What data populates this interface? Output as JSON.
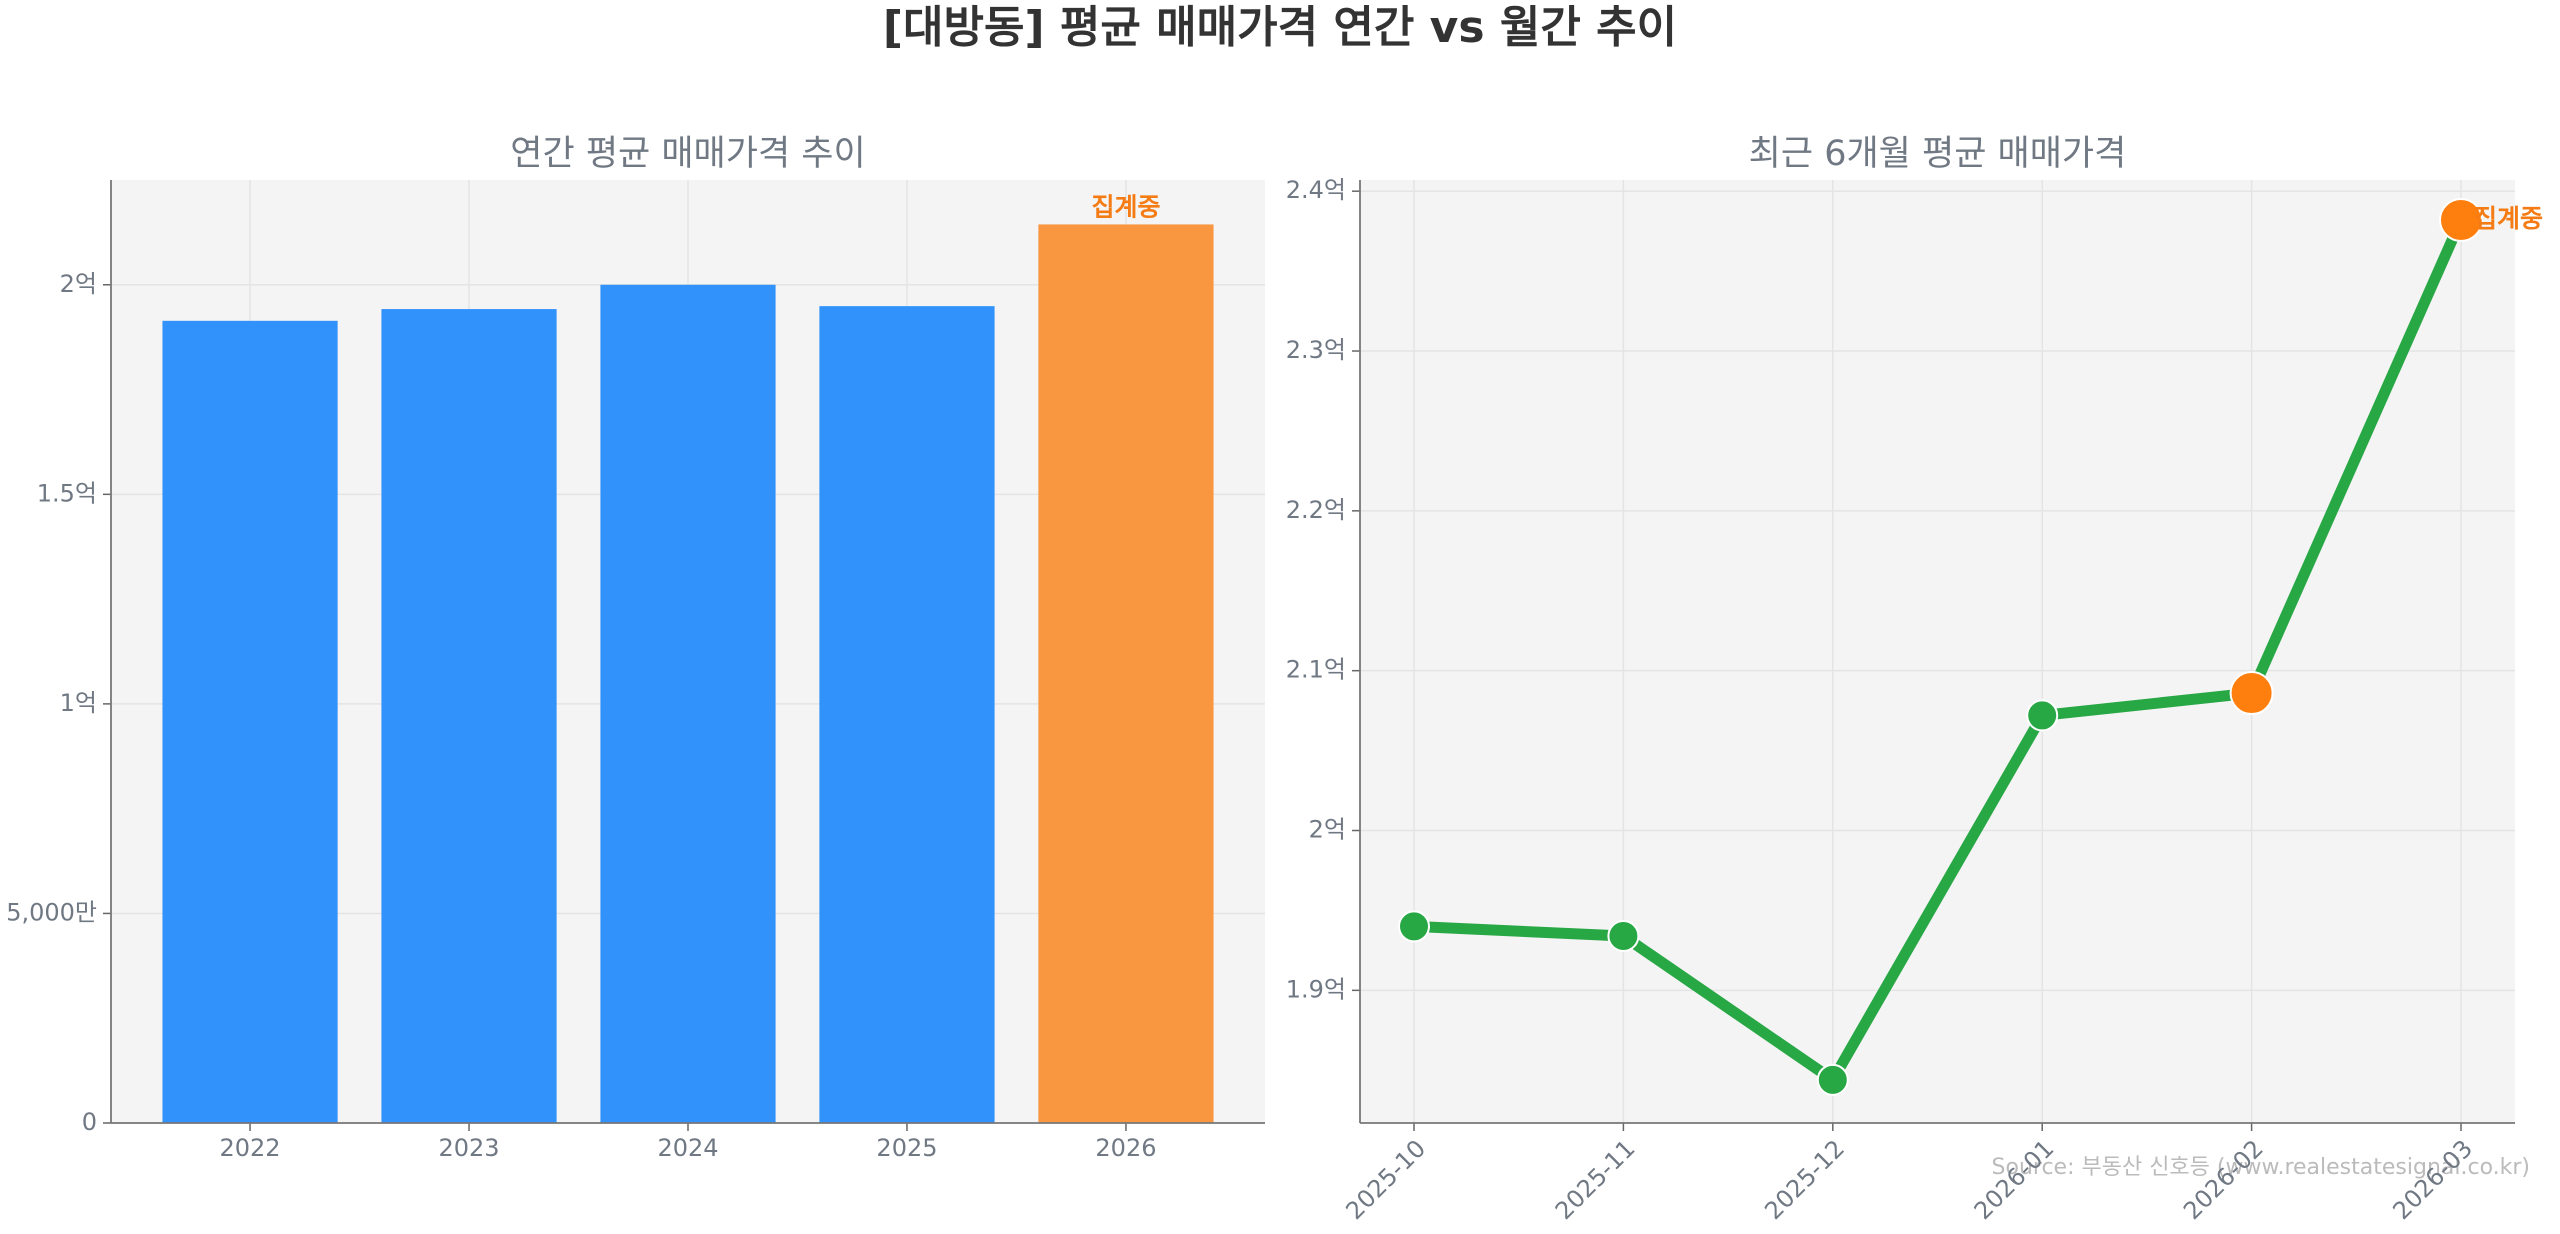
{
  "title": "[대방동] 평균 매매가격 연간 vs 월간 추이",
  "source": "Source: 부동산 신호등 (www.realestatesignal.co.kr)",
  "chart_data": [
    {
      "type": "bar",
      "title": "연간 평균 매매가격 추이",
      "categories": [
        "2022",
        "2023",
        "2024",
        "2025",
        "2026"
      ],
      "values": [
        1.914,
        1.942,
        2.0,
        1.949,
        2.144
      ],
      "colors": [
        "#3192fb",
        "#3192fb",
        "#3192fb",
        "#3192fb",
        "#f99740"
      ],
      "annotations": [
        {
          "text": "집계중",
          "x": "2026",
          "color": "#f57c14"
        }
      ],
      "ylim": [
        0,
        2.25
      ],
      "yticks": [
        0,
        {
          "value": 0.5,
          "label": "5,000만"
        },
        {
          "value": 1,
          "label": "1억"
        },
        {
          "value": 1.5,
          "label": "1.5억"
        },
        {
          "value": 2,
          "label": "2억"
        }
      ],
      "grid": true
    },
    {
      "type": "line",
      "title": "최근 6개월 평균 매매가격",
      "categories": [
        "2025-10",
        "2025-11",
        "2025-12",
        "2026-01",
        "2026-02",
        "2026-03"
      ],
      "series": [
        {
          "color": "#28a745",
          "values": [
            1.94,
            1.934,
            1.844,
            2.072,
            2.086,
            2.382
          ],
          "marker_colors": [
            "#28a745",
            "#28a745",
            "#28a745",
            "#28a745",
            "#ff7f0e",
            "#ff7f0e"
          ]
        }
      ],
      "annotations": [
        {
          "text": "집계중",
          "x": "2026-03",
          "color": "#f57c14"
        }
      ],
      "ylim": [
        1.817,
        2.407
      ],
      "yticks": [
        {
          "value": 1.9,
          "label": "1.9억"
        },
        {
          "value": 2.0,
          "label": "2억"
        },
        {
          "value": 2.1,
          "label": "2.1억"
        },
        {
          "value": 2.2,
          "label": "2.2억"
        },
        {
          "value": 2.3,
          "label": "2.3억"
        },
        {
          "value": 2.4,
          "label": "2.4억"
        }
      ],
      "grid": true
    }
  ]
}
